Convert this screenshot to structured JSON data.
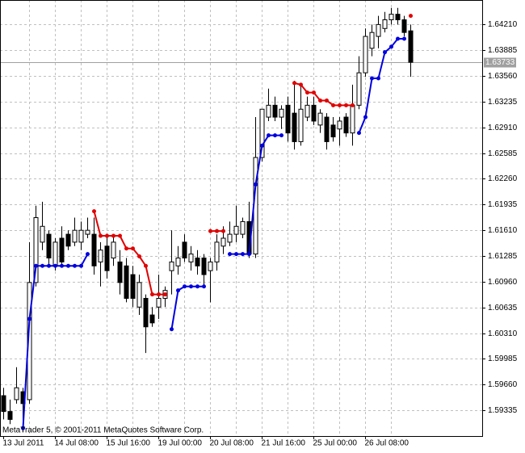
{
  "chart_data": {
    "type": "candlestick",
    "footer": "MetaTrader 5, © 2001-2011 MetaQuotes Software Corp.",
    "categories": [
      "13 Jul 2011",
      null,
      null,
      null,
      null,
      null,
      null,
      null,
      "14 Jul 08:00",
      null,
      null,
      null,
      null,
      null,
      null,
      null,
      "15 Jul 16:00",
      null,
      null,
      null,
      null,
      null,
      null,
      null,
      "19 Jul 00:00",
      null,
      null,
      null,
      null,
      null,
      null,
      null,
      "20 Jul 08:00",
      null,
      null,
      null,
      null,
      null,
      null,
      null,
      "21 Jul 16:00",
      null,
      null,
      null,
      null,
      null,
      null,
      null,
      "25 Jul 00:00",
      null,
      null,
      null,
      null,
      null,
      null,
      null,
      "26 Jul 08:00",
      null,
      null,
      null,
      null,
      null,
      null,
      null
    ],
    "open": [
      1.5952,
      1.5932,
      1.5947,
      1.5957,
      1.5947,
      1.6095,
      1.6146,
      1.6156,
      1.6116,
      1.6151,
      1.6156,
      1.6146,
      1.6146,
      1.6156,
      1.6156,
      1.6121,
      1.6141,
      1.6126,
      1.6121,
      1.6116,
      1.6105,
      1.6064,
      1.6075,
      1.6054,
      1.6064,
      1.6075,
      1.611,
      1.6116,
      1.6146,
      1.6121,
      1.6126,
      1.6126,
      1.611,
      1.6121,
      1.6141,
      1.6146,
      1.6156,
      1.6156,
      1.6172,
      1.6131,
      1.6253,
      1.6304,
      1.6319,
      1.6304,
      1.6319,
      1.6309,
      1.6273,
      1.6304,
      1.6319,
      1.6294,
      1.6304,
      1.6294,
      1.6289,
      1.6304,
      1.6284,
      1.6319,
      1.636,
      1.6391,
      1.6406,
      1.6416,
      1.6427,
      1.6434,
      1.6427,
      1.6413
    ],
    "high": [
      1.5962,
      1.5947,
      1.5988,
      1.5962,
      1.6146,
      1.6192,
      1.6197,
      1.6161,
      1.6151,
      1.6166,
      1.6161,
      1.6177,
      1.6172,
      1.6177,
      1.6177,
      1.6146,
      1.6156,
      1.6156,
      1.6136,
      1.6126,
      1.6116,
      1.6105,
      1.608,
      1.6064,
      1.6105,
      1.609,
      1.6161,
      1.6141,
      1.6156,
      1.6141,
      1.6136,
      1.6131,
      1.6126,
      1.6156,
      1.6166,
      1.6172,
      1.6192,
      1.6177,
      1.6197,
      1.6304,
      1.6314,
      1.634,
      1.633,
      1.6319,
      1.633,
      1.635,
      1.6345,
      1.633,
      1.633,
      1.6314,
      1.6309,
      1.6304,
      1.6304,
      1.6309,
      1.6345,
      1.6381,
      1.6416,
      1.6421,
      1.6432,
      1.6437,
      1.6442,
      1.6442,
      1.6432,
      1.6421
    ],
    "low": [
      1.5922,
      1.5916,
      1.5942,
      1.5906,
      1.5942,
      1.609,
      1.6136,
      1.6116,
      1.611,
      1.6116,
      1.6136,
      1.6141,
      1.6136,
      1.6151,
      1.6105,
      1.609,
      1.61,
      1.6116,
      1.608,
      1.607,
      1.6064,
      1.6054,
      1.6006,
      1.6039,
      1.6049,
      1.6064,
      1.608,
      1.6105,
      1.6121,
      1.611,
      1.6105,
      1.609,
      1.607,
      1.611,
      1.6131,
      1.6141,
      1.6146,
      1.6151,
      1.6126,
      1.6126,
      1.6248,
      1.6299,
      1.6299,
      1.6289,
      1.6273,
      1.6263,
      1.6268,
      1.6299,
      1.6294,
      1.6284,
      1.6263,
      1.6273,
      1.6268,
      1.6279,
      1.6268,
      1.6314,
      1.6355,
      1.6381,
      1.6391,
      1.6411,
      1.6421,
      1.6421,
      1.6406,
      1.6355
    ],
    "close": [
      1.5932,
      1.5922,
      1.5962,
      1.5942,
      1.6095,
      1.6177,
      1.6166,
      1.6126,
      1.6146,
      1.6121,
      1.6141,
      1.6161,
      1.6161,
      1.6161,
      1.6116,
      1.6136,
      1.611,
      1.6146,
      1.6095,
      1.6075,
      1.6075,
      1.6095,
      1.6039,
      1.6044,
      1.6075,
      1.6085,
      1.6121,
      1.6126,
      1.6126,
      1.6131,
      1.6116,
      1.6105,
      1.6121,
      1.6146,
      1.6151,
      1.6156,
      1.6166,
      1.6172,
      1.6131,
      1.6253,
      1.6314,
      1.6319,
      1.6304,
      1.6314,
      1.6284,
      1.6273,
      1.6314,
      1.6319,
      1.6299,
      1.6309,
      1.6273,
      1.6279,
      1.6299,
      1.6284,
      1.6319,
      1.636,
      1.6406,
      1.6411,
      1.6421,
      1.6427,
      1.6434,
      1.6427,
      1.6411,
      1.63733
    ],
    "up_color": "#ffffff",
    "down_color": "#000000",
    "series": [
      {
        "color": "#e00000",
        "values": [
          null,
          null,
          null,
          null,
          null,
          null,
          null,
          null,
          null,
          null,
          null,
          null,
          null,
          null,
          1.6185,
          1.6154,
          1.6154,
          1.6154,
          1.6154,
          1.6138,
          1.6138,
          1.6128,
          1.6116,
          1.608,
          1.608,
          1.608,
          null,
          null,
          null,
          null,
          null,
          null,
          1.616,
          1.616,
          1.616,
          null,
          null,
          null,
          null,
          null,
          null,
          null,
          null,
          null,
          null,
          1.6347,
          1.6345,
          1.6335,
          1.6335,
          1.6325,
          1.6325,
          1.6319,
          1.6319,
          1.6319,
          1.6319,
          null,
          null,
          null,
          null,
          null,
          null,
          null,
          null,
          1.6432
        ]
      },
      {
        "color": "#0000e0",
        "values": [
          null,
          null,
          null,
          1.5911,
          1.6049,
          1.6116,
          1.6116,
          1.6116,
          1.6116,
          1.6116,
          1.6116,
          1.6116,
          1.6116,
          1.6131,
          null,
          null,
          null,
          null,
          null,
          null,
          null,
          null,
          null,
          null,
          null,
          null,
          1.6036,
          1.6085,
          1.609,
          1.609,
          1.609,
          1.609,
          null,
          null,
          null,
          1.6131,
          1.6131,
          1.6131,
          1.6131,
          1.6219,
          1.6268,
          1.6281,
          1.6281,
          1.6281,
          null,
          null,
          null,
          null,
          null,
          null,
          null,
          null,
          null,
          null,
          null,
          1.6284,
          1.6304,
          1.6353,
          1.6353,
          1.6386,
          1.6393,
          1.6403,
          1.6403,
          null
        ]
      }
    ],
    "current_price": 1.63733,
    "ylim": [
      1.5901,
      1.6452
    ],
    "yticks": [
      1.59335,
      {
        "value": 1.5966,
        "label": "1.59660"
      },
      1.59985,
      {
        "value": 1.6031,
        "label": "1.60310"
      },
      1.60635,
      {
        "value": 1.6096,
        "label": "1.60960"
      },
      1.61285,
      {
        "value": 1.6161,
        "label": "1.61610"
      },
      1.61935,
      {
        "value": 1.6226,
        "label": "1.62260"
      },
      1.62585,
      {
        "value": 1.6291,
        "label": "1.62910"
      },
      1.63235,
      {
        "value": 1.6356,
        "label": "1.63560"
      },
      1.63885,
      {
        "value": 1.6421,
        "label": "1.64210"
      }
    ],
    "grid": true
  }
}
